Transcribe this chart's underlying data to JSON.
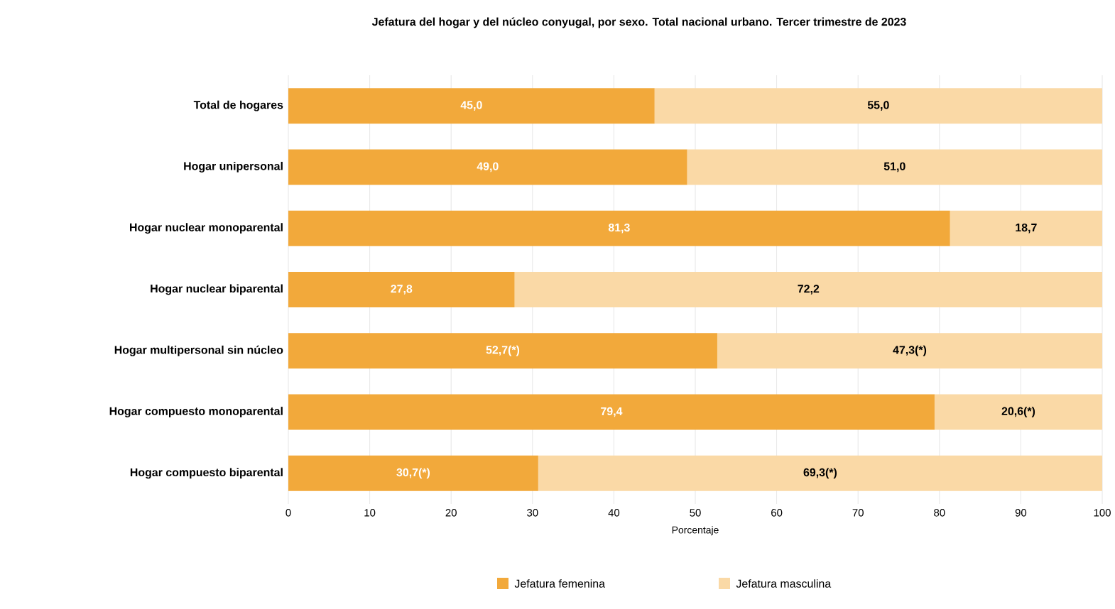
{
  "chart_data": {
    "type": "bar",
    "orientation": "horizontal",
    "stacked": true,
    "title": "Jefatura del hogar y del núcleo conyugal, por sexo. Total nacional urbano. Tercer trimestre de 2023",
    "xlabel": "Porcentaje",
    "categories": [
      "Total de hogares",
      "Hogar unipersonal",
      "Hogar nuclear monoparental",
      "Hogar nuclear biparental",
      "Hogar multipersonal sin núcleo",
      "Hogar compuesto monoparental",
      "Hogar compuesto biparental"
    ],
    "series": [
      {
        "name": "Jefatura femenina",
        "color": "#f2a93b",
        "values": [
          45.0,
          49.0,
          81.3,
          27.8,
          52.7,
          79.4,
          30.7
        ],
        "value_labels": [
          "45,0",
          "49,0",
          "81,3",
          "27,8",
          "52,7(*)",
          "79,4",
          "30,7(*)"
        ]
      },
      {
        "name": "Jefatura masculina",
        "color": "#fad9a6",
        "values": [
          55.0,
          51.0,
          18.7,
          72.2,
          47.3,
          20.6,
          69.3
        ],
        "value_labels": [
          "55,0",
          "51,0",
          "18,7",
          "72,2",
          "47,3(*)",
          "20,6(*)",
          "69,3(*)"
        ]
      }
    ],
    "xlim": [
      0,
      100
    ],
    "xticks": [
      0,
      10,
      20,
      30,
      40,
      50,
      60,
      70,
      80,
      90,
      100
    ],
    "grid": "x",
    "legend": "bottom"
  }
}
